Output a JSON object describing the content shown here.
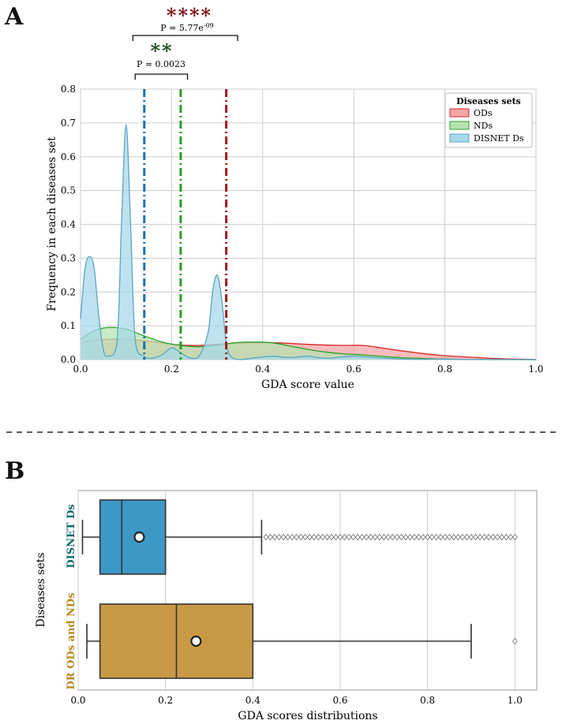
{
  "colors": {
    "ods": "#d62728",
    "ods_fill": "#f4a6a7",
    "nds": "#2ca02c",
    "nds_fill": "#b6e3b0",
    "disnet": "#5aa6c5",
    "disnet_fill": "#a8d8ea",
    "mean_disnet": "#1f6fa8",
    "mean_nds": "#2a9a2a",
    "mean_ods": "#9e1a1a",
    "box_disnet": "#3d98c6",
    "box_ordnd": "#c99a45",
    "label_disnet": "#0e6b6b",
    "label_ordnd": "#b88a1c",
    "stars_red": "#7a1010",
    "stars_green": "#1a4d1a"
  },
  "chart_data": [
    {
      "panel": "A",
      "type": "area",
      "xlabel": "GDA score value",
      "ylabel": "Frequency in each diseases set",
      "xlim": [
        0,
        1.0
      ],
      "ylim": [
        0,
        0.8
      ],
      "xticks": [
        "0.0",
        "0.2",
        "0.4",
        "0.6",
        "0.8",
        "1.0"
      ],
      "yticks": [
        "0.0",
        "0.1",
        "0.2",
        "0.3",
        "0.4",
        "0.5",
        "0.6",
        "0.7",
        "0.8"
      ],
      "grid": true,
      "legend": {
        "title": "Diseases sets",
        "position": "top-right",
        "entries": [
          "ODs",
          "NDs",
          "DISNET Ds"
        ]
      },
      "series": [
        {
          "name": "ODs",
          "x": [
            0,
            0.03,
            0.06,
            0.1,
            0.14,
            0.18,
            0.22,
            0.26,
            0.3,
            0.34,
            0.38,
            0.42,
            0.46,
            0.5,
            0.54,
            0.58,
            0.62,
            0.66,
            0.7,
            0.74,
            0.78,
            0.82,
            0.86,
            0.9,
            0.94,
            0.98,
            1.0
          ],
          "y": [
            0.05,
            0.057,
            0.06,
            0.06,
            0.056,
            0.049,
            0.043,
            0.042,
            0.045,
            0.049,
            0.05,
            0.05,
            0.048,
            0.045,
            0.043,
            0.042,
            0.042,
            0.035,
            0.027,
            0.02,
            0.014,
            0.01,
            0.007,
            0.004,
            0.002,
            0.001,
            0.0
          ]
        },
        {
          "name": "NDs",
          "x": [
            0,
            0.03,
            0.06,
            0.1,
            0.14,
            0.18,
            0.22,
            0.26,
            0.3,
            0.34,
            0.38,
            0.42,
            0.46,
            0.5,
            0.54,
            0.58,
            0.62,
            0.66,
            0.7,
            0.74,
            0.78,
            0.82,
            0.9,
            1.0
          ],
          "y": [
            0.06,
            0.085,
            0.095,
            0.09,
            0.07,
            0.052,
            0.042,
            0.038,
            0.043,
            0.05,
            0.052,
            0.05,
            0.04,
            0.03,
            0.022,
            0.017,
            0.014,
            0.01,
            0.006,
            0.004,
            0.002,
            0.001,
            0.0,
            0.0
          ]
        },
        {
          "name": "DISNET Ds",
          "x": [
            0,
            0.01,
            0.02,
            0.03,
            0.04,
            0.05,
            0.06,
            0.08,
            0.09,
            0.1,
            0.11,
            0.12,
            0.14,
            0.16,
            0.18,
            0.2,
            0.22,
            0.24,
            0.26,
            0.28,
            0.29,
            0.3,
            0.31,
            0.32,
            0.33,
            0.35,
            0.38,
            0.42,
            0.46,
            0.5,
            0.54,
            0.6,
            0.7,
            0.8,
            1.0
          ],
          "y": [
            0.12,
            0.27,
            0.305,
            0.27,
            0.13,
            0.03,
            0.01,
            0.05,
            0.4,
            0.695,
            0.4,
            0.06,
            0.01,
            0.005,
            0.015,
            0.035,
            0.02,
            0.005,
            0.01,
            0.08,
            0.2,
            0.25,
            0.18,
            0.05,
            0.01,
            0.0,
            0.005,
            0.01,
            0.006,
            0.01,
            0.004,
            0.01,
            0.002,
            0.001,
            0.0
          ]
        }
      ],
      "mean_lines": [
        {
          "name": "DISNET Ds",
          "x": 0.14
        },
        {
          "name": "NDs",
          "x": 0.22
        },
        {
          "name": "ODs",
          "x": 0.32
        }
      ],
      "annotations": [
        {
          "label": "P = 0.0023",
          "stars": "**",
          "x1": 0.12,
          "x2": 0.235
        },
        {
          "label": "P = 5.77e",
          "superscript": "-09",
          "stars": "****",
          "x1": 0.115,
          "x2": 0.345
        }
      ]
    },
    {
      "panel": "B",
      "type": "box",
      "xlabel": "GDA scores distributions",
      "ylabel": "Diseases sets",
      "xlim": [
        0,
        1.05
      ],
      "xticks": [
        "0.0",
        "0.2",
        "0.4",
        "0.6",
        "0.8",
        "1.0"
      ],
      "grid": true,
      "categories": [
        "DISNET Ds",
        "DR ODs and NDs"
      ],
      "boxes": [
        {
          "name": "DISNET Ds",
          "whisker_low": 0.01,
          "q1": 0.05,
          "median": 0.1,
          "mean": 0.14,
          "q3": 0.2,
          "whisker_high": 0.42,
          "outliers_from": 0.43,
          "outliers_to": 1.0,
          "outlier_count": 58
        },
        {
          "name": "DR ODs and NDs",
          "whisker_low": 0.02,
          "q1": 0.05,
          "median": 0.225,
          "mean": 0.27,
          "q3": 0.4,
          "whisker_high": 0.9,
          "outliers": [
            1.0
          ]
        }
      ]
    }
  ],
  "panels": {
    "a_letter": "A",
    "b_letter": "B"
  }
}
